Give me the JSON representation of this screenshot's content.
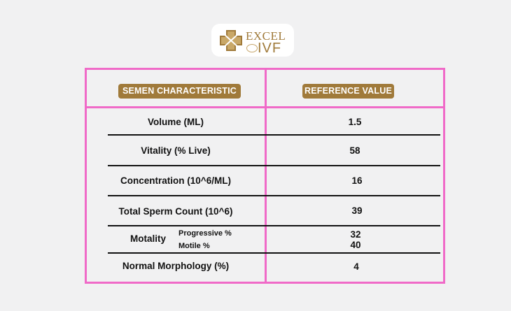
{
  "logo": {
    "line1": "EXCEL",
    "line2": "IVF"
  },
  "table": {
    "headers": {
      "characteristic": "SEMEN CHARACTERISTIC",
      "reference": "REFERENCE VALUE"
    },
    "rows": [
      {
        "label": "Volume (ML)",
        "value": "1.5"
      },
      {
        "label": "Vitality (% Live)",
        "value": "58"
      },
      {
        "label": "Concentration (10^6/ML)",
        "value": "16"
      },
      {
        "label": "Total Sperm Count (10^6)",
        "value": "39"
      },
      {
        "label": "Motality",
        "sub": [
          {
            "label": "Progressive %",
            "value": "32"
          },
          {
            "label": "Motile %",
            "value": "40"
          }
        ]
      },
      {
        "label": "Normal Morphology (%)",
        "value": "4"
      }
    ]
  },
  "colors": {
    "accent": "#a07a3a",
    "border": "#f06ac8",
    "background": "#f1f1f2"
  }
}
